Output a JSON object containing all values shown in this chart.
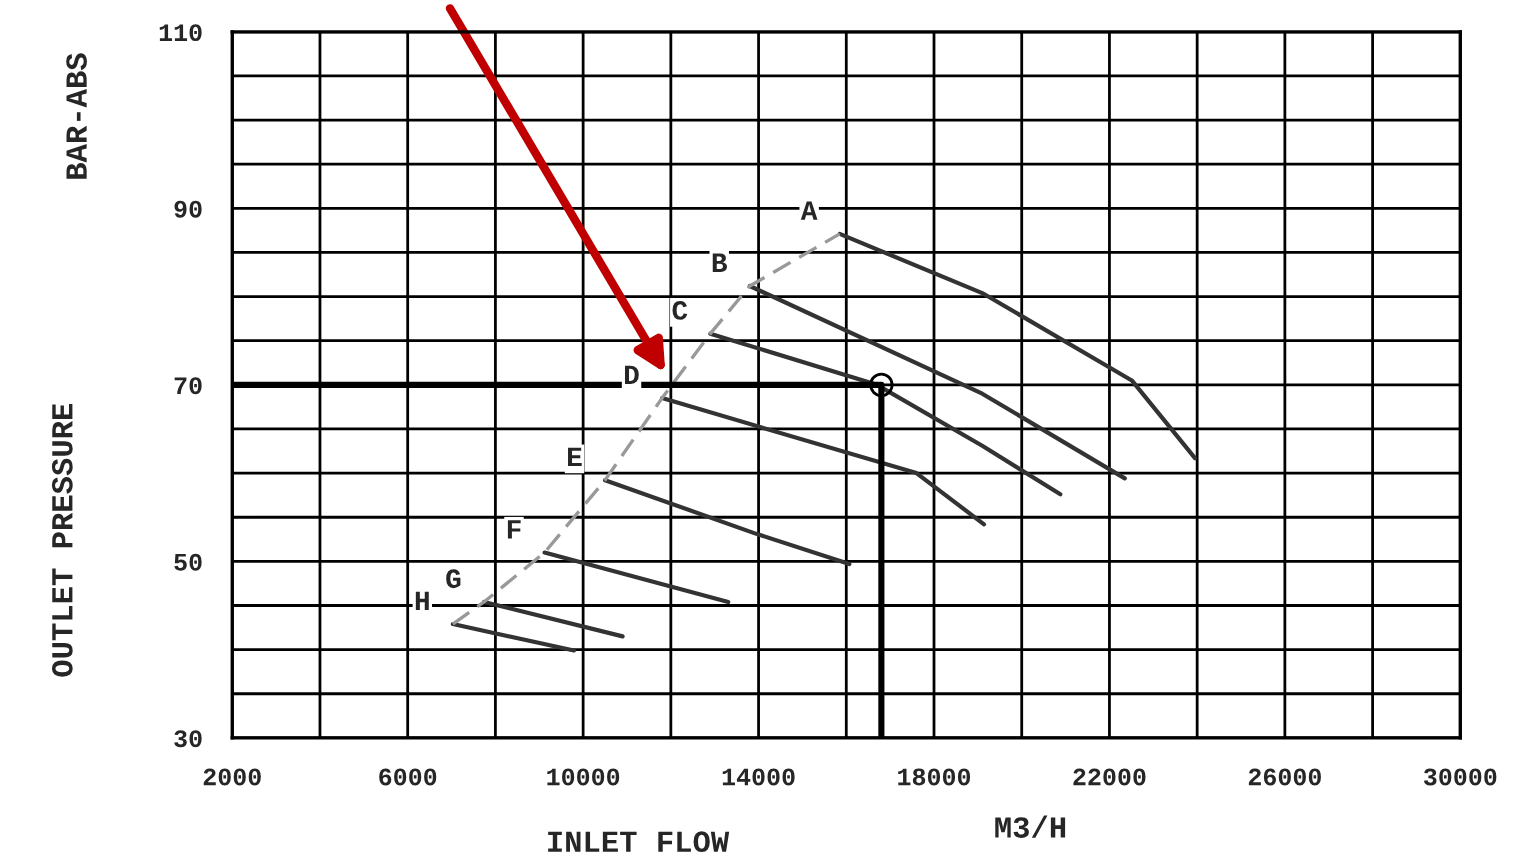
{
  "chart_data": {
    "type": "line",
    "xlabel": "INLET FLOW",
    "ylabel": "OUTLET PRESSURE",
    "annotations": [
      "BAR-ABS",
      "M3/H"
    ],
    "xlim": [
      2000,
      30000
    ],
    "ylim": [
      30,
      110
    ],
    "xticks": [
      2000,
      {
        "value": 4000,
        "label": null
      },
      6000,
      {
        "value": 8000,
        "label": null
      },
      10000,
      {
        "value": 12000,
        "label": null
      },
      14000,
      {
        "value": 16000,
        "label": null
      },
      18000,
      {
        "value": 20000,
        "label": null
      },
      22000,
      {
        "value": 24000,
        "label": null
      },
      26000,
      {
        "value": 28000,
        "label": null
      },
      30000
    ],
    "yticks": [
      30,
      {
        "value": 35,
        "label": null
      },
      {
        "value": 40,
        "label": null
      },
      {
        "value": 45,
        "label": null
      },
      50,
      {
        "value": 55,
        "label": null
      },
      {
        "value": 60,
        "label": null
      },
      {
        "value": 65,
        "label": null
      },
      70,
      {
        "value": 75,
        "label": null
      },
      {
        "value": 80,
        "label": null
      },
      {
        "value": 85,
        "label": null
      },
      90,
      {
        "value": 95,
        "label": null
      },
      {
        "value": 100,
        "label": null
      },
      {
        "value": 105,
        "label": null
      },
      110
    ],
    "grid": true,
    "legend": false,
    "series": [
      {
        "name": "A",
        "color": "#333333",
        "x": [
          15850,
          19100,
          22510,
          23950
        ],
        "values": [
          87.1,
          80.4,
          70.5,
          61.7
        ]
      },
      {
        "name": "B",
        "color": "#333333",
        "x": [
          13800,
          19100,
          22350
        ],
        "values": [
          81.2,
          69.0,
          59.4
        ]
      },
      {
        "name": "C",
        "color": "#333333",
        "x": [
          12900,
          16700,
          19100,
          20880
        ],
        "values": [
          75.8,
          70.0,
          63.1,
          57.6
        ]
      },
      {
        "name": "D",
        "color": "#333333",
        "x": [
          11800,
          17600,
          19140
        ],
        "values": [
          68.5,
          60.0,
          54.2
        ]
      },
      {
        "name": "E",
        "color": "#333333",
        "x": [
          10500,
          13900,
          16070
        ],
        "values": [
          59.2,
          53.2,
          49.7
        ]
      },
      {
        "name": "F",
        "color": "#333333",
        "x": [
          9120,
          13310
        ],
        "values": [
          51.0,
          45.4
        ]
      },
      {
        "name": "G",
        "color": "#333333",
        "x": [
          7740,
          10900
        ],
        "values": [
          45.4,
          41.5
        ]
      },
      {
        "name": "H",
        "color": "#333333",
        "x": [
          7030,
          9790
        ],
        "values": [
          42.9,
          39.9
        ]
      },
      {
        "color": "#999999",
        "line_style": "dashed",
        "x": [
          7030,
          7740,
          9120,
          10500,
          11800,
          12900,
          13800,
          15850
        ],
        "values": [
          42.9,
          45.4,
          51.0,
          59.2,
          68.5,
          75.8,
          81.2,
          87.1
        ]
      },
      {
        "color": "#000000",
        "x": [
          2000,
          16800,
          16800
        ],
        "values": [
          70,
          70,
          30
        ]
      },
      {
        "type": "scatter",
        "marker": "circle",
        "color": "#000000",
        "x": [
          16800
        ],
        "values": [
          70
        ]
      }
    ]
  }
}
